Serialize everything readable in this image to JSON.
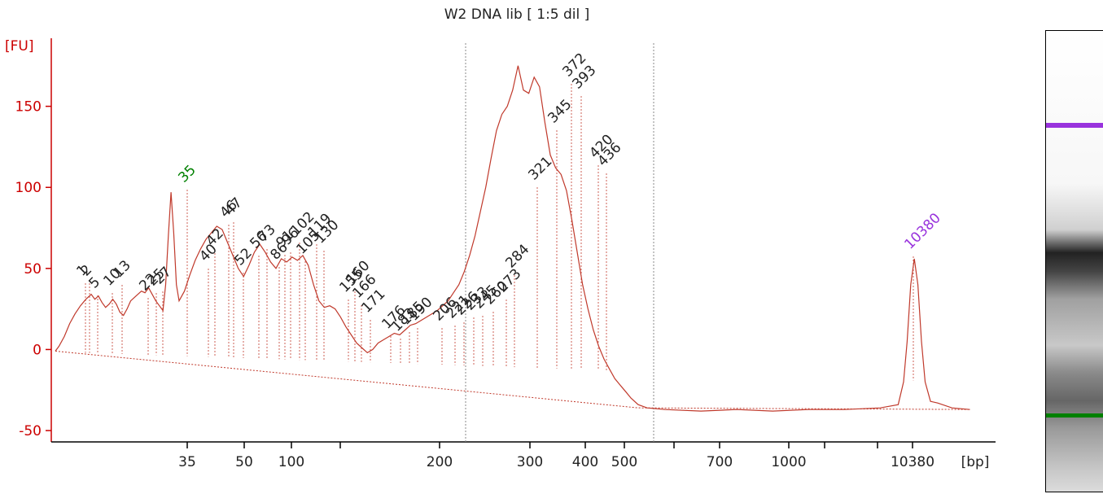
{
  "title": "W2 DNA lib  [ 1:5 dil ]",
  "colors": {
    "axis": "#cc0000",
    "trace": "#c0392b",
    "lower_marker": "#008000",
    "upper_marker": "#9933dd",
    "peak_label": "#222222"
  },
  "chart_data": {
    "type": "line",
    "title": "W2 DNA lib  [ 1:5 dil ]",
    "ylabel": "[FU]",
    "xlabel": "[bp]",
    "ylim": [
      -57,
      197
    ],
    "yticks": [
      -50,
      0,
      50,
      100,
      150
    ],
    "x_tick_labels": [
      "35",
      "50",
      "100",
      "200",
      "300",
      "400",
      "500",
      "700",
      "1000",
      "10380"
    ],
    "grid": false,
    "series": [
      {
        "values": [
          [
            0,
            -1
          ],
          [
            2,
            2
          ],
          [
            5,
            8
          ],
          [
            8,
            16
          ],
          [
            11,
            22
          ],
          [
            14,
            27
          ],
          [
            17,
            31
          ],
          [
            20,
            34
          ],
          [
            22,
            31
          ],
          [
            24,
            33
          ],
          [
            26,
            29
          ],
          [
            28,
            26
          ],
          [
            30,
            28
          ],
          [
            32,
            31
          ],
          [
            34,
            28
          ],
          [
            36,
            23
          ],
          [
            38,
            21
          ],
          [
            40,
            25
          ],
          [
            42,
            30
          ],
          [
            44,
            32
          ],
          [
            46,
            34
          ],
          [
            48,
            36
          ],
          [
            50,
            35
          ],
          [
            52,
            38
          ],
          [
            54,
            34
          ],
          [
            56,
            30
          ],
          [
            58,
            27
          ],
          [
            60,
            24
          ],
          [
            61.5,
            40
          ],
          [
            63,
            70
          ],
          [
            64.5,
            97
          ],
          [
            66,
            72
          ],
          [
            67.5,
            40
          ],
          [
            69,
            30
          ],
          [
            72,
            36
          ],
          [
            75,
            46
          ],
          [
            78,
            55
          ],
          [
            81,
            62
          ],
          [
            84,
            68
          ],
          [
            87,
            72
          ],
          [
            90,
            76
          ],
          [
            93,
            74
          ],
          [
            96,
            66
          ],
          [
            99,
            58
          ],
          [
            102,
            50
          ],
          [
            105,
            45
          ],
          [
            108,
            52
          ],
          [
            111,
            60
          ],
          [
            114,
            65
          ],
          [
            117,
            60
          ],
          [
            120,
            54
          ],
          [
            123,
            50
          ],
          [
            126,
            56
          ],
          [
            129,
            54
          ],
          [
            132,
            57
          ],
          [
            135,
            55
          ],
          [
            138,
            58
          ],
          [
            141,
            52
          ],
          [
            144,
            40
          ],
          [
            147,
            30
          ],
          [
            150,
            26
          ],
          [
            153,
            27
          ],
          [
            156,
            25
          ],
          [
            159,
            20
          ],
          [
            162,
            14
          ],
          [
            165,
            9
          ],
          [
            168,
            4
          ],
          [
            171,
            1
          ],
          [
            174,
            -2
          ],
          [
            177,
            0
          ],
          [
            180,
            4
          ],
          [
            183,
            6
          ],
          [
            186,
            8
          ],
          [
            189,
            10
          ],
          [
            192,
            9
          ],
          [
            195,
            12
          ],
          [
            198,
            15
          ],
          [
            201,
            16
          ],
          [
            204,
            18
          ],
          [
            207,
            20
          ],
          [
            210,
            22
          ],
          [
            213,
            24
          ],
          [
            216,
            27
          ],
          [
            219,
            30
          ],
          [
            222,
            35
          ],
          [
            225,
            40
          ],
          [
            228,
            48
          ],
          [
            231,
            58
          ],
          [
            234,
            70
          ],
          [
            237,
            85
          ],
          [
            240,
            100
          ],
          [
            243,
            118
          ],
          [
            246,
            135
          ],
          [
            249,
            145
          ],
          [
            252,
            150
          ],
          [
            255,
            160
          ],
          [
            258,
            175
          ],
          [
            261,
            160
          ],
          [
            264,
            158
          ],
          [
            267,
            168
          ],
          [
            270,
            162
          ],
          [
            273,
            140
          ],
          [
            276,
            120
          ],
          [
            279,
            112
          ],
          [
            282,
            108
          ],
          [
            285,
            98
          ],
          [
            288,
            80
          ],
          [
            291,
            60
          ],
          [
            294,
            40
          ],
          [
            297,
            25
          ],
          [
            300,
            12
          ],
          [
            303,
            2
          ],
          [
            306,
            -6
          ],
          [
            309,
            -12
          ],
          [
            312,
            -18
          ],
          [
            315,
            -22
          ],
          [
            318,
            -26
          ],
          [
            321,
            -30
          ],
          [
            325,
            -34
          ],
          [
            330,
            -36
          ],
          [
            340,
            -37
          ],
          [
            360,
            -38
          ],
          [
            380,
            -37
          ],
          [
            400,
            -38
          ],
          [
            420,
            -37
          ],
          [
            440,
            -37
          ],
          [
            460,
            -36
          ],
          [
            470,
            -34
          ],
          [
            473,
            -20
          ],
          [
            475,
            5
          ],
          [
            477,
            40
          ],
          [
            479,
            56
          ],
          [
            481,
            40
          ],
          [
            483,
            5
          ],
          [
            485,
            -20
          ],
          [
            488,
            -32
          ],
          [
            492,
            -33
          ],
          [
            500,
            -36
          ],
          [
            510,
            -37
          ]
        ]
      }
    ],
    "peak_labels": [
      "1",
      "2",
      "5",
      "10",
      "13",
      "22",
      "25",
      "27",
      "35",
      "40",
      "42",
      "46",
      "47",
      "52",
      "56",
      "73",
      "86",
      "91",
      "96",
      "102",
      "105",
      "119",
      "130",
      "155",
      "160",
      "166",
      "171",
      "176",
      "183",
      "185",
      "190",
      "206",
      "221",
      "226",
      "233",
      "245",
      "260",
      "273",
      "284",
      "321",
      "345",
      "372",
      "393",
      "420",
      "436",
      "10380"
    ],
    "markers": {
      "lower": "35",
      "upper": "10380"
    },
    "gel_bands": "lower marker green, upper marker purple"
  }
}
